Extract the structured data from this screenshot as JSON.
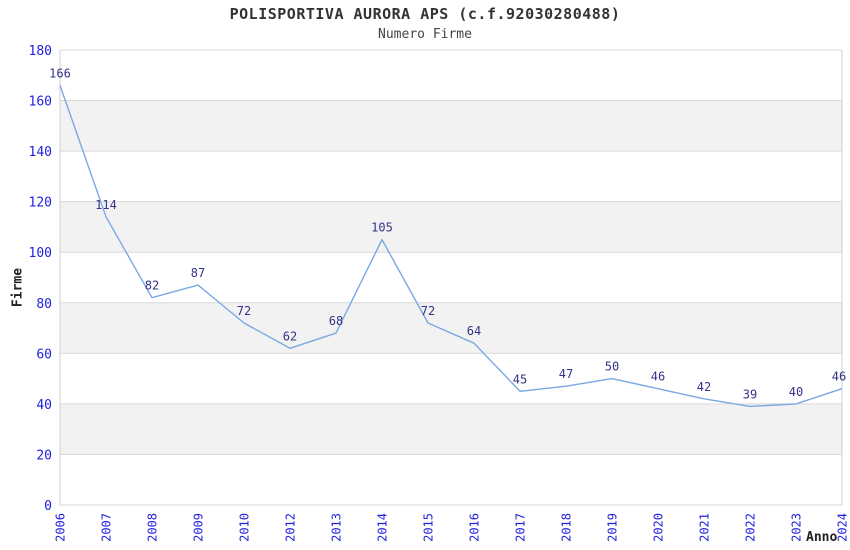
{
  "chart_data": {
    "type": "line",
    "title": "POLISPORTIVA AURORA APS (c.f.92030280488)",
    "subtitle": "Numero Firme",
    "xlabel": "Anno",
    "ylabel": "Firme",
    "categories": [
      "2006",
      "2007",
      "2008",
      "2009",
      "2010",
      "2012",
      "2013",
      "2014",
      "2015",
      "2016",
      "2017",
      "2018",
      "2019",
      "2020",
      "2021",
      "2022",
      "2023",
      "2024"
    ],
    "values": [
      166,
      114,
      82,
      87,
      72,
      62,
      68,
      105,
      72,
      64,
      45,
      47,
      50,
      46,
      42,
      39,
      40,
      46
    ],
    "ylim": [
      0,
      180
    ],
    "yticks": [
      0,
      20,
      40,
      60,
      80,
      100,
      120,
      140,
      160,
      180
    ],
    "grid": true,
    "legend": "none",
    "data_labels_visible": true,
    "colors": {
      "line": "#79a9e3",
      "data_label": "#333388",
      "axis_tick_label": "#2222dd",
      "band_fill": "#f2f2f2",
      "grid_line": "#d9d9d9",
      "plot_border": "#d0d0d0",
      "title_text": "#333333",
      "axis_title_text": "#222222"
    },
    "layout_hints": {
      "alternating_horizontal_bands": true,
      "x_tick_rotation_deg": 90,
      "missing_year": "2011"
    }
  }
}
